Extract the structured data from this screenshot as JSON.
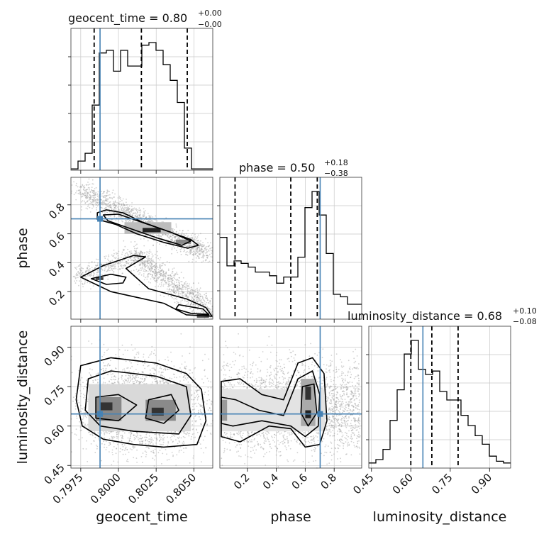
{
  "chart_data": {
    "type": "corner",
    "parameters": [
      "geocent_time",
      "phase",
      "luminosity_distance"
    ],
    "truth_color": "#4682b4",
    "axis_labels": {
      "geocent_time": "geocent_time",
      "phase": "phase",
      "luminosity_distance": "luminosity_distance"
    },
    "titles": [
      {
        "param": "geocent_time",
        "name": "geocent_time",
        "median": "0.80",
        "plus": "+0.00",
        "minus": "−0.00"
      },
      {
        "param": "phase",
        "name": "phase",
        "median": "0.50",
        "plus": "+0.18",
        "minus": "−0.38"
      },
      {
        "param": "luminosity_distance",
        "name": "luminosity_distance",
        "median": "0.68",
        "plus": "+0.10",
        "minus": "−0.08"
      }
    ],
    "ranges": {
      "geocent_time": [
        0.79685,
        0.80625
      ],
      "phase": [
        0.01,
        0.99
      ],
      "luminosity_distance": [
        0.44,
        0.98
      ]
    },
    "ticks": {
      "geocent_time": {
        "values": [
          0.7975,
          0.8,
          0.8025,
          0.805
        ],
        "labels": [
          "0.7975",
          "0.8000",
          "0.8025",
          "0.8050"
        ]
      },
      "phase": {
        "values": [
          0.2,
          0.4,
          0.6,
          0.8
        ],
        "labels": [
          "0.2",
          "0.4",
          "0.6",
          "0.8"
        ]
      },
      "luminosity_distance": {
        "values": [
          0.45,
          0.6,
          0.75,
          0.9
        ],
        "labels": [
          "0.45",
          "0.60",
          "0.75",
          "0.90"
        ]
      }
    },
    "truths": {
      "geocent_time": 0.79878,
      "phase": 0.703,
      "luminosity_distance": 0.646
    },
    "quantiles": {
      "geocent_time": [
        0.79839,
        0.80152,
        0.80456
      ],
      "phase": [
        0.115,
        0.5,
        0.683
      ],
      "luminosity_distance": [
        0.6,
        0.68,
        0.78
      ]
    },
    "histograms": {
      "geocent_time": {
        "edges_range": [
          0.79685,
          0.80625
        ],
        "counts": [
          1,
          7,
          13,
          50,
          90,
          92,
          76,
          92,
          80,
          80,
          96,
          98,
          92,
          81,
          69,
          52,
          17,
          1,
          1,
          1
        ]
      },
      "phase": {
        "edges_range": [
          0.01,
          0.99
        ],
        "counts": [
          66,
          43,
          47,
          45,
          42,
          38,
          38,
          35,
          29,
          34,
          34,
          50,
          90,
          103,
          84,
          53,
          20,
          18,
          12,
          12
        ]
      },
      "luminosity_distance": {
        "edges_range": [
          0.44,
          0.98
        ],
        "counts": [
          3,
          5,
          11,
          28,
          46,
          67,
          75,
          58,
          55,
          57,
          45,
          40,
          40,
          31,
          25,
          19,
          14,
          7,
          4,
          3
        ]
      }
    },
    "contours": {
      "phase_vs_geocent_time": [
        {
          "level": "2sigma",
          "points": [
            [
              0.7986,
              0.745
            ],
            [
              0.7992,
              0.765
            ],
            [
              0.8003,
              0.745
            ],
            [
              0.8016,
              0.68
            ],
            [
              0.8032,
              0.62
            ],
            [
              0.8048,
              0.56
            ],
            [
              0.8053,
              0.52
            ],
            [
              0.8046,
              0.5
            ],
            [
              0.803,
              0.54
            ],
            [
              0.8012,
              0.6
            ],
            [
              0.7998,
              0.665
            ],
            [
              0.7986,
              0.7
            ]
          ]
        },
        {
          "level": "1sigma",
          "points": [
            [
              0.799,
              0.73
            ],
            [
              0.8,
              0.735
            ],
            [
              0.8018,
              0.67
            ],
            [
              0.8035,
              0.61
            ],
            [
              0.8048,
              0.55
            ],
            [
              0.8042,
              0.52
            ],
            [
              0.8026,
              0.57
            ],
            [
              0.8008,
              0.635
            ],
            [
              0.7993,
              0.69
            ]
          ]
        },
        {
          "level": "2sigma",
          "points": [
            [
              0.7975,
              0.3
            ],
            [
              0.799,
              0.38
            ],
            [
              0.801,
              0.45
            ],
            [
              0.8018,
              0.44
            ],
            [
              0.8005,
              0.36
            ],
            [
              0.802,
              0.22
            ],
            [
              0.8045,
              0.15
            ],
            [
              0.8058,
              0.09
            ],
            [
              0.8062,
              0.03
            ],
            [
              0.8045,
              0.04
            ],
            [
              0.803,
              0.12
            ],
            [
              0.8008,
              0.17
            ],
            [
              0.7995,
              0.2
            ],
            [
              0.7985,
              0.25
            ]
          ]
        },
        {
          "level": "1sigma",
          "points": [
            [
              0.7982,
              0.29
            ],
            [
              0.7995,
              0.32
            ],
            [
              0.8005,
              0.3
            ],
            [
              0.8003,
              0.26
            ],
            [
              0.7992,
              0.25
            ]
          ]
        },
        {
          "level": "1sigma",
          "points": [
            [
              0.804,
              0.11
            ],
            [
              0.8056,
              0.08
            ],
            [
              0.806,
              0.04
            ],
            [
              0.8048,
              0.05
            ],
            [
              0.8038,
              0.08
            ]
          ]
        }
      ],
      "luminosity_distance_vs_geocent_time": [
        {
          "level": "2sigma",
          "points": [
            [
              0.7975,
              0.83
            ],
            [
              0.7995,
              0.86
            ],
            [
              0.8025,
              0.84
            ],
            [
              0.8045,
              0.8
            ],
            [
              0.8055,
              0.74
            ],
            [
              0.8058,
              0.62
            ],
            [
              0.8052,
              0.53
            ],
            [
              0.803,
              0.52
            ],
            [
              0.801,
              0.53
            ],
            [
              0.799,
              0.55
            ],
            [
              0.7976,
              0.6
            ],
            [
              0.7972,
              0.7
            ]
          ]
        },
        {
          "level": "1.5sigma",
          "points": [
            [
              0.798,
              0.78
            ],
            [
              0.7995,
              0.81
            ],
            [
              0.8025,
              0.79
            ],
            [
              0.8045,
              0.75
            ],
            [
              0.8048,
              0.64
            ],
            [
              0.804,
              0.57
            ],
            [
              0.801,
              0.58
            ],
            [
              0.7988,
              0.6
            ],
            [
              0.7978,
              0.66
            ]
          ]
        },
        {
          "level": "1sigma",
          "points": [
            [
              0.7985,
              0.71
            ],
            [
              0.8,
              0.72
            ],
            [
              0.8012,
              0.68
            ],
            [
              0.8,
              0.62
            ],
            [
              0.7985,
              0.63
            ]
          ]
        },
        {
          "level": "1sigma",
          "points": [
            [
              0.802,
              0.7
            ],
            [
              0.8035,
              0.72
            ],
            [
              0.804,
              0.66
            ],
            [
              0.803,
              0.61
            ],
            [
              0.8018,
              0.63
            ]
          ]
        }
      ],
      "luminosity_distance_vs_phase": [
        {
          "level": "2sigma",
          "points": [
            [
              0.02,
              0.77
            ],
            [
              0.15,
              0.78
            ],
            [
              0.3,
              0.72
            ],
            [
              0.45,
              0.7
            ],
            [
              0.55,
              0.84
            ],
            [
              0.65,
              0.86
            ],
            [
              0.73,
              0.8
            ],
            [
              0.75,
              0.62
            ],
            [
              0.7,
              0.53
            ],
            [
              0.6,
              0.52
            ],
            [
              0.5,
              0.59
            ],
            [
              0.35,
              0.6
            ],
            [
              0.15,
              0.54
            ],
            [
              0.02,
              0.56
            ]
          ]
        },
        {
          "level": "1sigma",
          "points": [
            [
              0.02,
              0.71
            ],
            [
              0.12,
              0.7
            ],
            [
              0.28,
              0.66
            ],
            [
              0.45,
              0.64
            ],
            [
              0.55,
              0.78
            ],
            [
              0.65,
              0.81
            ],
            [
              0.7,
              0.72
            ],
            [
              0.69,
              0.6
            ],
            [
              0.6,
              0.56
            ],
            [
              0.5,
              0.6
            ],
            [
              0.3,
              0.62
            ],
            [
              0.1,
              0.6
            ],
            [
              0.02,
              0.61
            ]
          ]
        },
        {
          "level": "1sigma",
          "points": [
            [
              0.58,
              0.75
            ],
            [
              0.66,
              0.76
            ],
            [
              0.68,
              0.65
            ],
            [
              0.62,
              0.6
            ],
            [
              0.57,
              0.65
            ]
          ]
        }
      ]
    }
  }
}
